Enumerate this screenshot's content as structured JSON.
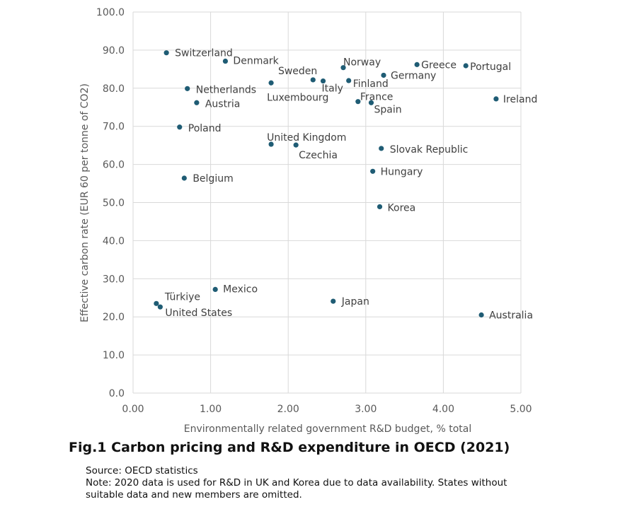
{
  "figure": {
    "caption": "Fig.1 Carbon pricing and R&D expenditure in OECD (2021)",
    "source": "Source: OECD statistics",
    "note_line1": "Note: 2020 data is used for R&D in UK and Korea due to data availability. States without",
    "note_line2": "suitable data and new members are omitted."
  },
  "chart_data": {
    "type": "scatter",
    "title": "",
    "xlabel": "Environmentally related government  R&D budget,  % total",
    "ylabel": "Effective carbon rate (EUR 60 per tonne of CO2)",
    "xlim": [
      0,
      5
    ],
    "ylim": [
      0,
      100
    ],
    "x_ticks": [
      "0.00",
      "1.00",
      "2.00",
      "3.00",
      "4.00",
      "5.00"
    ],
    "y_ticks": [
      "0.0",
      "10.0",
      "20.0",
      "30.0",
      "40.0",
      "50.0",
      "60.0",
      "70.0",
      "80.0",
      "90.0",
      "100.0"
    ],
    "grid": true,
    "marker_color": "#1f5c74",
    "points": [
      {
        "label": "Switzerland",
        "x": 0.43,
        "y": 89.3
      },
      {
        "label": "Denmark",
        "x": 1.19,
        "y": 87.1
      },
      {
        "label": "Netherlands",
        "x": 0.7,
        "y": 79.9
      },
      {
        "label": "Austria",
        "x": 0.82,
        "y": 76.2
      },
      {
        "label": "Poland",
        "x": 0.6,
        "y": 69.8
      },
      {
        "label": "Belgium",
        "x": 0.66,
        "y": 56.4
      },
      {
        "label": "Luxembourg",
        "x": 1.78,
        "y": 81.4
      },
      {
        "label": "United Kingdom",
        "x": 1.78,
        "y": 65.3
      },
      {
        "label": "Czechia",
        "x": 2.1,
        "y": 65.1
      },
      {
        "label": "Sweden",
        "x": 2.32,
        "y": 82.2
      },
      {
        "label": "Italy",
        "x": 2.45,
        "y": 81.9
      },
      {
        "label": "Norway",
        "x": 2.71,
        "y": 85.4
      },
      {
        "label": "Finland",
        "x": 2.78,
        "y": 82.0
      },
      {
        "label": "France",
        "x": 2.9,
        "y": 76.5
      },
      {
        "label": "Spain",
        "x": 3.07,
        "y": 76.2
      },
      {
        "label": "Germany",
        "x": 3.23,
        "y": 83.4
      },
      {
        "label": "Greece",
        "x": 3.66,
        "y": 86.2
      },
      {
        "label": "Portugal",
        "x": 4.29,
        "y": 85.9
      },
      {
        "label": "Ireland",
        "x": 4.68,
        "y": 77.2
      },
      {
        "label": "Slovak Republic",
        "x": 3.2,
        "y": 64.2
      },
      {
        "label": "Hungary",
        "x": 3.09,
        "y": 58.2
      },
      {
        "label": "Korea",
        "x": 3.18,
        "y": 48.9
      },
      {
        "label": "Mexico",
        "x": 1.06,
        "y": 27.2
      },
      {
        "label": "Türkiye",
        "x": 0.3,
        "y": 23.5
      },
      {
        "label": "United States",
        "x": 0.35,
        "y": 22.6
      },
      {
        "label": "Japan",
        "x": 2.58,
        "y": 24.1
      },
      {
        "label": "Australia",
        "x": 4.49,
        "y": 20.5
      }
    ]
  }
}
